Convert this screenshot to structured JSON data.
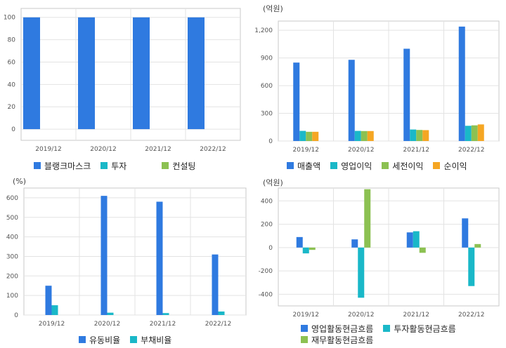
{
  "colors": {
    "blue": "#2f7ae0",
    "teal": "#1ab8c8",
    "green": "#8cc152",
    "orange": "#f5a623",
    "grid": "#e3e3e3",
    "axis": "#c8c8c8"
  },
  "chart_data": [
    {
      "type": "bar",
      "unit": "",
      "categories": [
        "2019/12",
        "2020/12",
        "2021/12",
        "2022/12"
      ],
      "series": [
        {
          "name": "블랭크마스크",
          "values": [
            100,
            100,
            100,
            100
          ]
        },
        {
          "name": "투자",
          "values": [
            0,
            0,
            0,
            0
          ]
        },
        {
          "name": "컨설팅",
          "values": [
            0,
            0,
            0,
            0
          ]
        }
      ],
      "yticks": [
        0,
        20,
        40,
        60,
        80,
        100
      ],
      "ytick_labels": [
        "0",
        "20",
        "40",
        "60",
        "80",
        "100"
      ],
      "ylim": [
        -10,
        108
      ],
      "grid": true,
      "legend": "bottom"
    },
    {
      "type": "bar",
      "unit": "(억원)",
      "categories": [
        "2019/12",
        "2020/12",
        "2021/12",
        "2022/12"
      ],
      "series": [
        {
          "name": "매출액",
          "values": [
            850,
            880,
            1000,
            1240
          ]
        },
        {
          "name": "영업이익",
          "values": [
            110,
            110,
            125,
            165
          ]
        },
        {
          "name": "세전이익",
          "values": [
            100,
            108,
            120,
            170
          ]
        },
        {
          "name": "순이익",
          "values": [
            100,
            108,
            118,
            180
          ]
        }
      ],
      "yticks": [
        0,
        300,
        600,
        900,
        1200
      ],
      "ytick_labels": [
        "0",
        "300",
        "600",
        "900",
        "1,200"
      ],
      "ylim": [
        0,
        1300
      ],
      "grid": true,
      "legend": "bottom"
    },
    {
      "type": "bar",
      "unit": "(%)",
      "categories": [
        "2019/12",
        "2020/12",
        "2021/12",
        "2022/12"
      ],
      "series": [
        {
          "name": "유동비율",
          "values": [
            150,
            610,
            580,
            310
          ]
        },
        {
          "name": "부채비율",
          "values": [
            50,
            12,
            10,
            18
          ]
        }
      ],
      "yticks": [
        0,
        100,
        200,
        300,
        400,
        500,
        600
      ],
      "ytick_labels": [
        "0",
        "100",
        "200",
        "300",
        "400",
        "500",
        "600"
      ],
      "ylim": [
        0,
        650
      ],
      "grid": true,
      "legend": "bottom"
    },
    {
      "type": "bar",
      "unit": "(억원)",
      "categories": [
        "2019/12",
        "2020/12",
        "2021/12",
        "2022/12"
      ],
      "series": [
        {
          "name": "영업활동현금흐름",
          "values": [
            90,
            70,
            130,
            250
          ]
        },
        {
          "name": "투자활동현금흐름",
          "values": [
            -50,
            -430,
            140,
            -330
          ]
        },
        {
          "name": "재무활동현금흐름",
          "values": [
            -20,
            500,
            -45,
            30
          ]
        }
      ],
      "yticks": [
        -400,
        -200,
        0,
        200,
        400
      ],
      "ytick_labels": [
        "-400",
        "-200",
        "0",
        "200",
        "400"
      ],
      "ylim": [
        -500,
        510
      ],
      "grid": true,
      "legend": "bottom"
    }
  ]
}
